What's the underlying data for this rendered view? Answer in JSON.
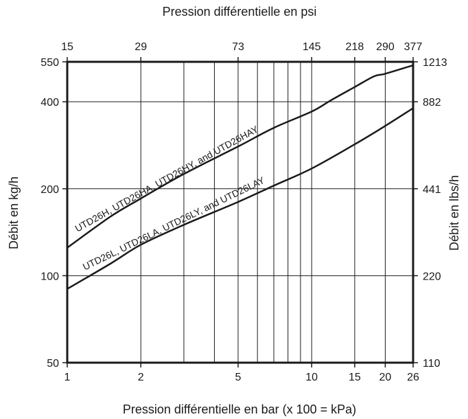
{
  "chart_data": {
    "type": "line",
    "title": "",
    "x_scale": "log",
    "y_scale": "log",
    "grid": true,
    "legend": "none",
    "x_bottom": {
      "label": "Pression différentielle en bar (x 100 = kPa)",
      "range": [
        1,
        26
      ],
      "ticks": [
        1,
        2,
        5,
        10,
        15,
        20,
        26
      ],
      "tick_labels": [
        "1",
        "2",
        "5",
        "10",
        "15",
        "20",
        "26"
      ]
    },
    "x_top": {
      "label": "Pression différentielle en psi",
      "ticks_bar": [
        1,
        2,
        5,
        10,
        15,
        20,
        26
      ],
      "tick_labels": [
        "15",
        "29",
        "73",
        "145",
        "218",
        "290",
        "377"
      ]
    },
    "y_left": {
      "label": "Débit en kg/h",
      "range": [
        50,
        550
      ],
      "ticks": [
        50,
        100,
        200,
        400,
        550
      ],
      "tick_labels": [
        "50",
        "100",
        "200",
        "400",
        "550"
      ]
    },
    "y_right": {
      "label": "Débit en lbs/h",
      "ticks_kgh": [
        50,
        100,
        200,
        400,
        550
      ],
      "tick_labels": [
        "110",
        "220",
        "441",
        "882",
        "1213"
      ]
    },
    "vertical_gridlines_bar": [
      2,
      3,
      4,
      5,
      6,
      7,
      8,
      9,
      10,
      15,
      20
    ],
    "series": [
      {
        "name": "UTD26H, UTD26HA, UTD26HY, and UTD26HAY",
        "color": "#1a1a1a",
        "x": [
          1,
          1.5,
          2,
          3,
          5,
          7,
          10,
          12,
          15,
          18,
          20,
          26
        ],
        "y": [
          125,
          160,
          185,
          225,
          280,
          325,
          370,
          405,
          450,
          490,
          500,
          535
        ]
      },
      {
        "name": "UTD26L, UTD26LA, UTD26LY, and UTD26LAY",
        "color": "#1a1a1a",
        "x": [
          1,
          1.5,
          2,
          3,
          5,
          7,
          10,
          15,
          20,
          26
        ],
        "y": [
          90,
          110,
          128,
          150,
          180,
          205,
          235,
          285,
          330,
          380
        ]
      }
    ]
  }
}
